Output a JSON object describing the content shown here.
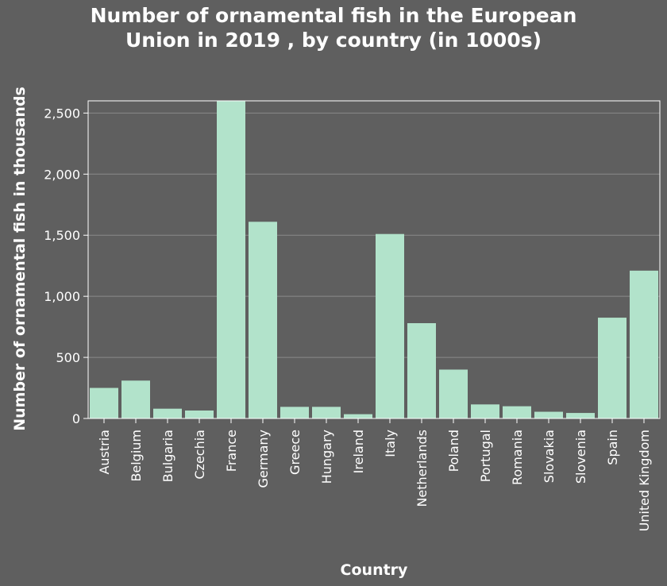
{
  "chart_data": {
    "type": "bar",
    "title_lines": [
      "Number of ornamental fish in the European",
      "Union in 2019 , by country (in 1000s)"
    ],
    "xlabel": "Country",
    "ylabel": "Number of ornamental fish in thousands",
    "categories": [
      "Austria",
      "Belgium",
      "Bulgaria",
      "Czechia",
      "France",
      "Germany",
      "Greece",
      "Hungary",
      "Ireland",
      "Italy",
      "Netherlands",
      "Poland",
      "Portugal",
      "Romania",
      "Slovakia",
      "Slovenia",
      "Spain",
      "United Kingdom"
    ],
    "values": [
      250,
      310,
      80,
      65,
      2650,
      1610,
      95,
      95,
      35,
      1510,
      780,
      400,
      115,
      100,
      55,
      45,
      825,
      1210
    ],
    "ylim": [
      0,
      2600
    ],
    "yticks": [
      0,
      500,
      1000,
      1500,
      2000,
      2500
    ],
    "ytick_labels": [
      "0",
      "500",
      "1,000",
      "1,500",
      "2,000",
      "2,500"
    ],
    "grid": true,
    "colors": {
      "background": "#5f5f5f",
      "bar": "#b2e3cb",
      "grid": "#8a8a8a",
      "text": "#ffffff"
    }
  }
}
